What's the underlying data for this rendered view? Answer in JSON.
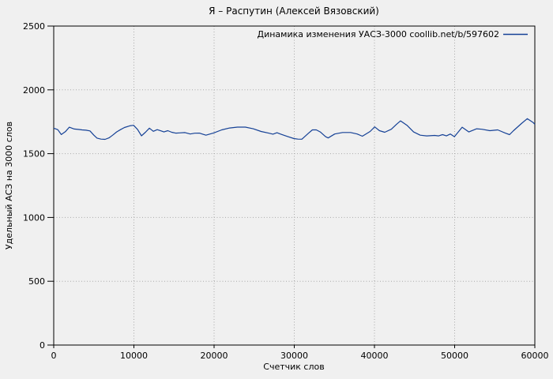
{
  "chart_data": {
    "type": "line",
    "title": "Я – Распутин (Алексей Вязовский)",
    "xlabel": "Счетчик слов",
    "ylabel": "Удельный АСЗ на 3000 слов",
    "legend": {
      "position": "top-right",
      "entries": [
        {
          "label": "Динамика изменения УАСЗ-3000 coollib.net/b/597602",
          "color": "#154196"
        }
      ]
    },
    "xlim": [
      0,
      60000
    ],
    "ylim": [
      0,
      2500
    ],
    "xticks": [
      0,
      10000,
      20000,
      30000,
      40000,
      50000,
      60000
    ],
    "yticks": [
      0,
      500,
      1000,
      1500,
      2000,
      2500
    ],
    "grid": true,
    "grid_style": "dotted",
    "colors": {
      "background": "#f0f0f0",
      "axis": "#000000",
      "grid": "#a8a8a8",
      "text": "#000000",
      "series": "#154196"
    },
    "series": [
      {
        "name": "Динамика изменения УАСЗ-3000 coollib.net/b/597602",
        "points": [
          [
            0,
            1700
          ],
          [
            500,
            1688
          ],
          [
            950,
            1650
          ],
          [
            1450,
            1672
          ],
          [
            1940,
            1707
          ],
          [
            2560,
            1693
          ],
          [
            3050,
            1690
          ],
          [
            3540,
            1686
          ],
          [
            4030,
            1684
          ],
          [
            4520,
            1678
          ],
          [
            5000,
            1645
          ],
          [
            5400,
            1622
          ],
          [
            5900,
            1614
          ],
          [
            6400,
            1612
          ],
          [
            6900,
            1624
          ],
          [
            7350,
            1645
          ],
          [
            7840,
            1670
          ],
          [
            8330,
            1688
          ],
          [
            8820,
            1705
          ],
          [
            9470,
            1718
          ],
          [
            9960,
            1722
          ],
          [
            10450,
            1690
          ],
          [
            10950,
            1640
          ],
          [
            11440,
            1668
          ],
          [
            11930,
            1700
          ],
          [
            12420,
            1675
          ],
          [
            12910,
            1688
          ],
          [
            13400,
            1678
          ],
          [
            13740,
            1670
          ],
          [
            14230,
            1680
          ],
          [
            14720,
            1668
          ],
          [
            15210,
            1661
          ],
          [
            15700,
            1663
          ],
          [
            16360,
            1665
          ],
          [
            17020,
            1654
          ],
          [
            17590,
            1660
          ],
          [
            18170,
            1661
          ],
          [
            18990,
            1645
          ],
          [
            19970,
            1663
          ],
          [
            20950,
            1686
          ],
          [
            21930,
            1701
          ],
          [
            22920,
            1708
          ],
          [
            23900,
            1708
          ],
          [
            24880,
            1695
          ],
          [
            25860,
            1674
          ],
          [
            26850,
            1660
          ],
          [
            27340,
            1653
          ],
          [
            27840,
            1664
          ],
          [
            28330,
            1653
          ],
          [
            29140,
            1635
          ],
          [
            29960,
            1618
          ],
          [
            30460,
            1614
          ],
          [
            30950,
            1613
          ],
          [
            31770,
            1660
          ],
          [
            32260,
            1686
          ],
          [
            32750,
            1686
          ],
          [
            33240,
            1670
          ],
          [
            33900,
            1633
          ],
          [
            34230,
            1623
          ],
          [
            35040,
            1654
          ],
          [
            36030,
            1666
          ],
          [
            37010,
            1666
          ],
          [
            37840,
            1654
          ],
          [
            38490,
            1637
          ],
          [
            39460,
            1674
          ],
          [
            40030,
            1710
          ],
          [
            40620,
            1680
          ],
          [
            41280,
            1668
          ],
          [
            42100,
            1691
          ],
          [
            42750,
            1730
          ],
          [
            43250,
            1757
          ],
          [
            44060,
            1722
          ],
          [
            44880,
            1670
          ],
          [
            45700,
            1645
          ],
          [
            46520,
            1639
          ],
          [
            47500,
            1643
          ],
          [
            48000,
            1639
          ],
          [
            48490,
            1649
          ],
          [
            48980,
            1639
          ],
          [
            49470,
            1654
          ],
          [
            49970,
            1633
          ],
          [
            50940,
            1707
          ],
          [
            51770,
            1670
          ],
          [
            52750,
            1695
          ],
          [
            53400,
            1691
          ],
          [
            54390,
            1680
          ],
          [
            55370,
            1686
          ],
          [
            56350,
            1660
          ],
          [
            56850,
            1649
          ],
          [
            57340,
            1680
          ],
          [
            58330,
            1736
          ],
          [
            59050,
            1774
          ],
          [
            59800,
            1743
          ],
          [
            60000,
            1730
          ]
        ]
      }
    ]
  }
}
